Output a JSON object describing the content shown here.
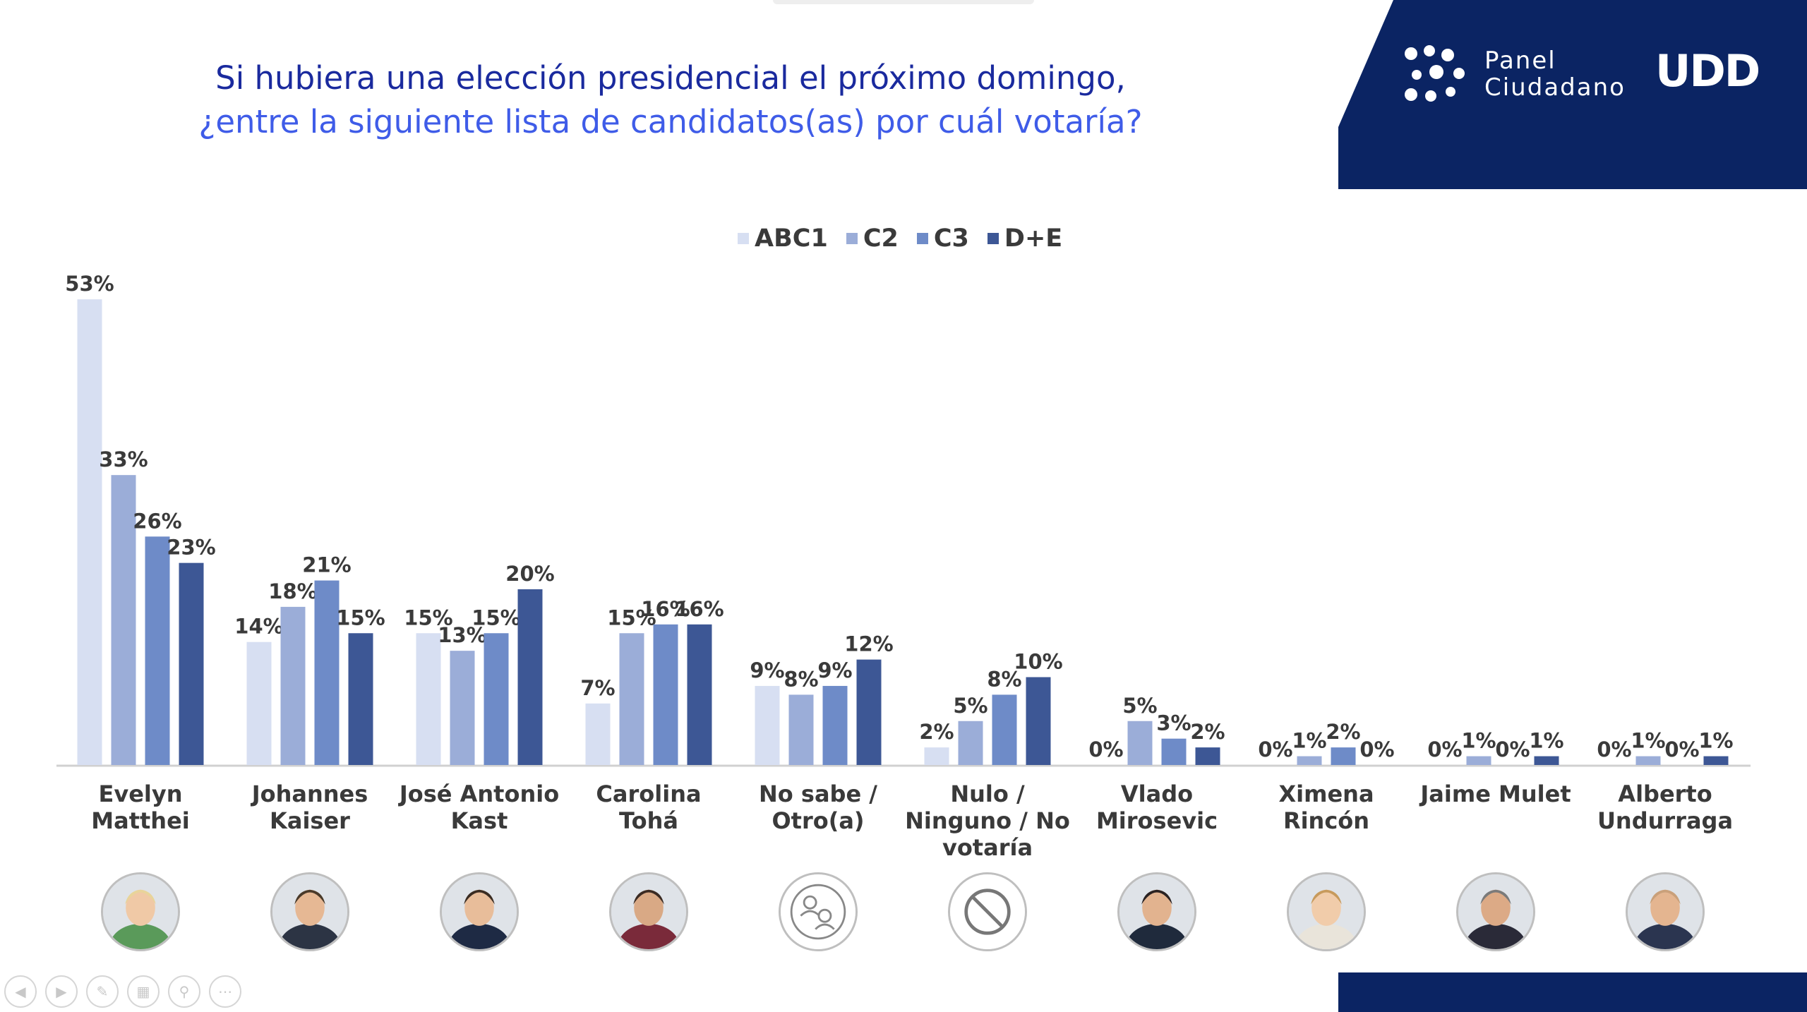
{
  "title": {
    "line1": "Si hubiera una elección presidencial el próximo domingo,",
    "line2": "¿entre la siguiente lista de candidatos(as) por cuál votaría?"
  },
  "logo": {
    "line1": "Panel",
    "line2": "Ciudadano",
    "brand": "UDD"
  },
  "colors": {
    "navy": "#0b2463",
    "title_dark": "#1a2a9e",
    "title_light": "#3f5ce8"
  },
  "chart_data": {
    "type": "bar",
    "categories": [
      [
        "Evelyn",
        "Matthei"
      ],
      [
        "Johannes",
        "Kaiser"
      ],
      [
        "José Antonio",
        "Kast"
      ],
      [
        "Carolina Tohá"
      ],
      [
        "No sabe /",
        "Otro(a)"
      ],
      [
        "Nulo /",
        "Ninguno / No",
        "votaría"
      ],
      [
        "Vlado",
        "Mirosevic"
      ],
      [
        "Ximena",
        "Rincón"
      ],
      [
        "Jaime Mulet"
      ],
      [
        "Alberto",
        "Undurraga"
      ]
    ],
    "series": [
      {
        "name": "ABC1",
        "color": "#d7dff2",
        "values": [
          53,
          14,
          15,
          7,
          9,
          2,
          0,
          0,
          0,
          0
        ]
      },
      {
        "name": "C2",
        "color": "#9badd8",
        "values": [
          33,
          18,
          13,
          15,
          8,
          5,
          5,
          1,
          1,
          1
        ]
      },
      {
        "name": "C3",
        "color": "#6e8bc8",
        "values": [
          26,
          21,
          15,
          16,
          9,
          8,
          3,
          2,
          0,
          0
        ]
      },
      {
        "name": "D+E",
        "color": "#3d5795",
        "values": [
          23,
          15,
          20,
          16,
          12,
          10,
          2,
          0,
          1,
          1
        ]
      }
    ],
    "value_suffix": "%",
    "ylim": [
      0,
      55
    ],
    "legend_position": "top-center",
    "grid": false
  },
  "avatars": [
    "person-photo",
    "person-photo",
    "person-photo",
    "person-photo",
    "users-icon",
    "prohibited-icon",
    "person-photo",
    "person-photo",
    "person-photo",
    "person-photo"
  ],
  "toolbar": [
    "back-icon",
    "forward-icon",
    "pen-icon",
    "slides-icon",
    "zoom-icon",
    "more-icon"
  ]
}
